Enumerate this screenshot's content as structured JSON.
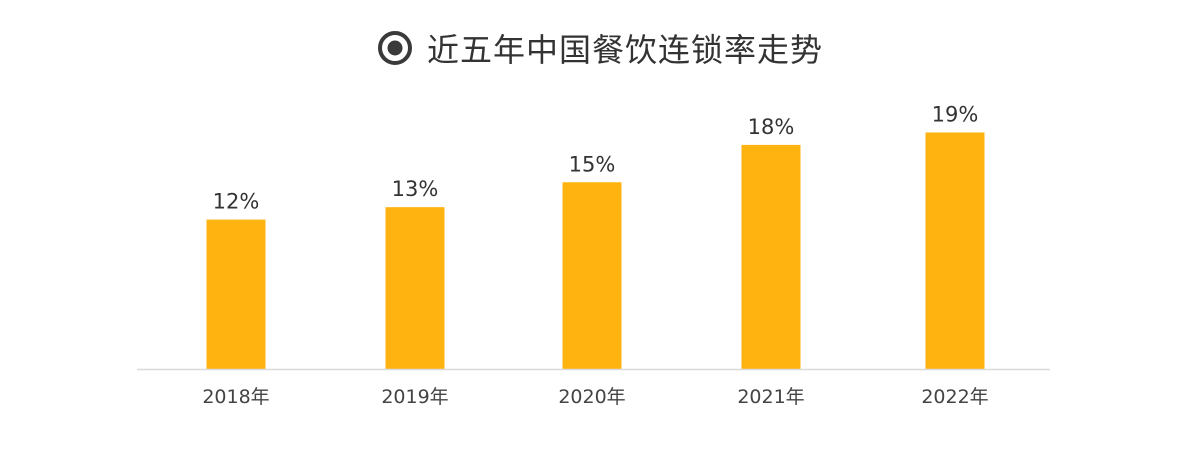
{
  "title": "近五年中国餐饮连锁率走势",
  "title_icon": "target-circle-icon",
  "colors": {
    "bar": "#FFB311",
    "axis": "#D9D9D9",
    "text": "#333333",
    "icon": "#3A3A3A"
  },
  "chart_data": {
    "type": "bar",
    "title": "近五年中国餐饮连锁率走势",
    "categories": [
      "2018年",
      "2019年",
      "2020年",
      "2021年",
      "2022年"
    ],
    "values": [
      12,
      13,
      15,
      18,
      19
    ],
    "value_labels": [
      "12%",
      "13%",
      "15%",
      "18%",
      "19%"
    ],
    "unit": "%",
    "xlabel": "",
    "ylabel": "",
    "ylim": [
      0,
      20
    ],
    "grid": false,
    "legend": "none"
  }
}
